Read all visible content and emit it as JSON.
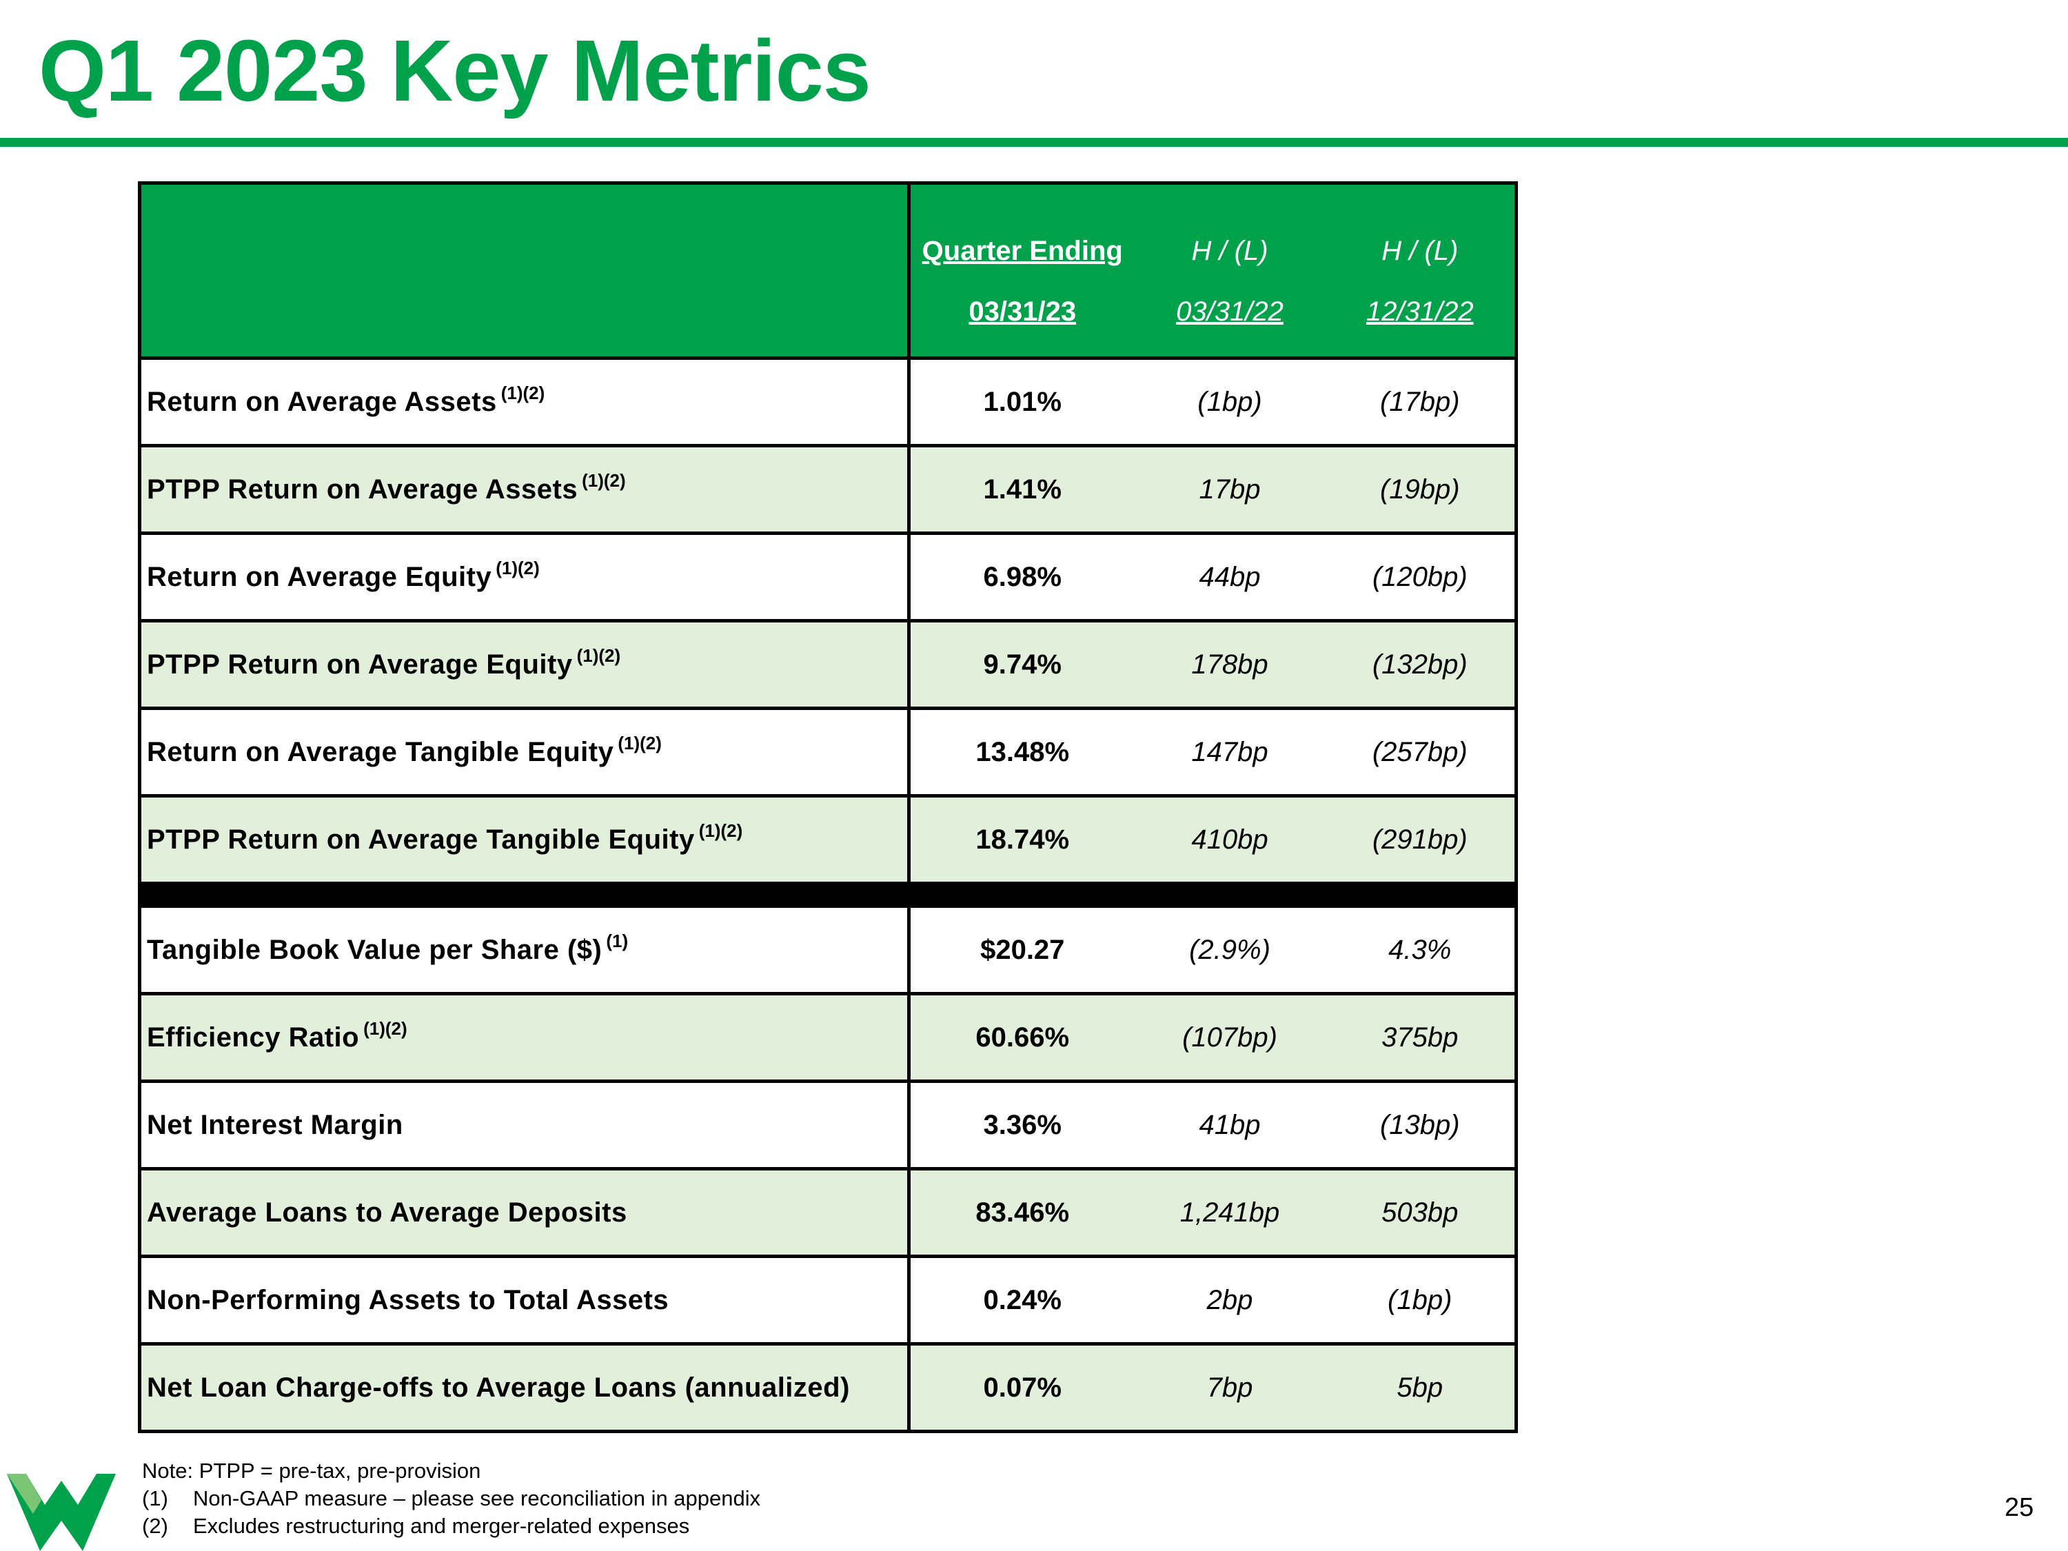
{
  "title": "Q1 2023 Key Metrics",
  "table": {
    "header": {
      "col1_line1": "Quarter Ending",
      "col1_line2": "03/31/23",
      "col2_line1": "H / (L)",
      "col2_line2": "03/31/22",
      "col3_line1": "H / (L)",
      "col3_line2": "12/31/22"
    },
    "rows_group1": [
      {
        "label": "Return on Average Assets",
        "note": "(1)(2)",
        "q": "1.01%",
        "yoy": "(1bp)",
        "qoq": "(17bp)"
      },
      {
        "label": "PTPP Return on Average Assets",
        "note": "(1)(2)",
        "q": "1.41%",
        "yoy": "17bp",
        "qoq": "(19bp)"
      },
      {
        "label": "Return on Average Equity",
        "note": "(1)(2)",
        "q": "6.98%",
        "yoy": "44bp",
        "qoq": "(120bp)"
      },
      {
        "label": "PTPP Return on Average Equity",
        "note": "(1)(2)",
        "q": "9.74%",
        "yoy": "178bp",
        "qoq": "(132bp)"
      },
      {
        "label": "Return on Average Tangible Equity",
        "note": "(1)(2)",
        "q": "13.48%",
        "yoy": "147bp",
        "qoq": "(257bp)"
      },
      {
        "label": "PTPP Return on Average Tangible Equity",
        "note": "(1)(2)",
        "q": "18.74%",
        "yoy": "410bp",
        "qoq": "(291bp)"
      }
    ],
    "rows_group2": [
      {
        "label": "Tangible Book Value per Share ($)",
        "note": "(1)",
        "q": "$20.27",
        "yoy": "(2.9%)",
        "qoq": "4.3%"
      },
      {
        "label": "Efficiency Ratio",
        "note": "(1)(2)",
        "q": "60.66%",
        "yoy": "(107bp)",
        "qoq": "375bp"
      },
      {
        "label": "Net Interest Margin",
        "note": "",
        "q": "3.36%",
        "yoy": "41bp",
        "qoq": "(13bp)"
      },
      {
        "label": "Average Loans to Average Deposits",
        "note": "",
        "q": "83.46%",
        "yoy": "1,241bp",
        "qoq": "503bp"
      },
      {
        "label": "Non-Performing Assets to Total Assets",
        "note": "",
        "q": "0.24%",
        "yoy": "2bp",
        "qoq": "(1bp)"
      },
      {
        "label": "Net Loan Charge-offs to Average Loans (annualized)",
        "note": "",
        "q": "0.07%",
        "yoy": "7bp",
        "qoq": "5bp"
      }
    ]
  },
  "footnotes": {
    "note": "Note:  PTPP = pre-tax, pre-provision",
    "items": [
      {
        "num": "(1)",
        "text": "Non-GAAP measure – please see reconciliation in appendix"
      },
      {
        "num": "(2)",
        "text": "Excludes restructuring and merger-related expenses"
      }
    ]
  },
  "page_number": "25",
  "colors": {
    "brand_green": "#00A14B",
    "row_tint": "#E2EFDA"
  },
  "logo_icon": "company-w-logo-icon"
}
